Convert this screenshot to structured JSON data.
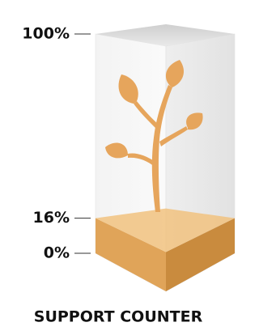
{
  "chart_data": {
    "type": "bar",
    "title": "SUPPORT COUNTER",
    "values": [
      16
    ],
    "color": "#e0a459",
    "ylim": [
      0,
      100
    ],
    "yticks": [
      {
        "value": 0,
        "label": "0%"
      },
      {
        "value": 16,
        "label": "16%"
      },
      {
        "value": 100,
        "label": "100%"
      }
    ]
  }
}
